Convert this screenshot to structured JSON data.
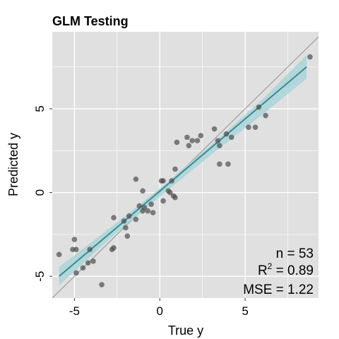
{
  "chart_data": {
    "type": "scatter",
    "title": "GLM Testing",
    "xlabel": "True y",
    "ylabel": "Predicted y",
    "xlim": [
      -6.3,
      9.3
    ],
    "ylim": [
      -6.3,
      9.6
    ],
    "x_ticks": [
      -5,
      0,
      5
    ],
    "y_ticks": [
      -5,
      0,
      5
    ],
    "x_tick_labels": [
      "-5",
      "0",
      "5"
    ],
    "y_tick_labels": [
      "-5",
      "0",
      "5"
    ],
    "grid": true,
    "points": [
      {
        "x": -5.9,
        "y": -3.7
      },
      {
        "x": -5.1,
        "y": -3.4
      },
      {
        "x": -4.9,
        "y": -3.4
      },
      {
        "x": -5.0,
        "y": -2.8
      },
      {
        "x": -4.9,
        "y": -4.8
      },
      {
        "x": -4.5,
        "y": -4.5
      },
      {
        "x": -4.2,
        "y": -4.2
      },
      {
        "x": -4.1,
        "y": -3.4
      },
      {
        "x": -3.9,
        "y": -4.1
      },
      {
        "x": -3.4,
        "y": -5.5
      },
      {
        "x": -2.8,
        "y": -3.4
      },
      {
        "x": -2.7,
        "y": -3.3
      },
      {
        "x": -2.7,
        "y": -1.5
      },
      {
        "x": -2.1,
        "y": -1.7
      },
      {
        "x": -2.0,
        "y": -2.1
      },
      {
        "x": -1.9,
        "y": -2.6
      },
      {
        "x": -1.8,
        "y": -1.4
      },
      {
        "x": -1.4,
        "y": -1.6
      },
      {
        "x": -1.4,
        "y": 0.8
      },
      {
        "x": -1.2,
        "y": -0.8
      },
      {
        "x": -1.0,
        "y": -1.1
      },
      {
        "x": -1.0,
        "y": 0.1
      },
      {
        "x": -0.7,
        "y": -1.1
      },
      {
        "x": -0.5,
        "y": -0.7
      },
      {
        "x": -0.4,
        "y": -1.2
      },
      {
        "x": 0.1,
        "y": 0.7
      },
      {
        "x": 0.2,
        "y": 0.7
      },
      {
        "x": 0.2,
        "y": -0.5
      },
      {
        "x": 0.5,
        "y": 0.1
      },
      {
        "x": 0.6,
        "y": 0.0
      },
      {
        "x": 0.7,
        "y": 0.7
      },
      {
        "x": 0.8,
        "y": -0.2
      },
      {
        "x": 0.9,
        "y": -0.3
      },
      {
        "x": 0.9,
        "y": 1.4
      },
      {
        "x": 1.0,
        "y": 3.0
      },
      {
        "x": 1.6,
        "y": 3.3
      },
      {
        "x": 1.7,
        "y": 2.8
      },
      {
        "x": 1.9,
        "y": 3.1
      },
      {
        "x": 2.2,
        "y": 3.1
      },
      {
        "x": 2.4,
        "y": 3.4
      },
      {
        "x": 3.2,
        "y": 3.8
      },
      {
        "x": 3.4,
        "y": 3.1
      },
      {
        "x": 3.5,
        "y": 1.7
      },
      {
        "x": 3.5,
        "y": 2.8
      },
      {
        "x": 3.9,
        "y": 3.5
      },
      {
        "x": 4.0,
        "y": 1.7
      },
      {
        "x": 4.2,
        "y": 3.3
      },
      {
        "x": 5.2,
        "y": 3.9
      },
      {
        "x": 5.6,
        "y": 3.9
      },
      {
        "x": 5.8,
        "y": 5.1
      },
      {
        "x": 6.2,
        "y": 4.6
      },
      {
        "x": 8.8,
        "y": 8.1
      },
      {
        "x": -0.9,
        "y": -0.9
      }
    ],
    "fit_line": {
      "x": [
        -5.9,
        8.6
      ],
      "y": [
        -5.0,
        7.5
      ]
    },
    "confidence_band": {
      "x": [
        -5.9,
        -3.0,
        0.0,
        3.0,
        6.0,
        8.6
      ],
      "lower": [
        -5.55,
        -2.82,
        -0.25,
        2.25,
        4.65,
        6.8
      ],
      "upper": [
        -4.45,
        -2.18,
        0.25,
        2.85,
        5.55,
        8.2
      ]
    },
    "identity_line": true,
    "annotations": {
      "n_text": "n = 53",
      "r2_prefix": "R",
      "r2_sup": "2",
      "r2_value": " = 0.89",
      "mse_text": "MSE = 1.22"
    },
    "colors": {
      "panel": "#e0e0e0",
      "grid": "#ffffff",
      "points": "#4d4d4d",
      "fit_line": "#3a8c92",
      "band": "#a9d3d7",
      "identity": "#9e9e9e"
    }
  }
}
